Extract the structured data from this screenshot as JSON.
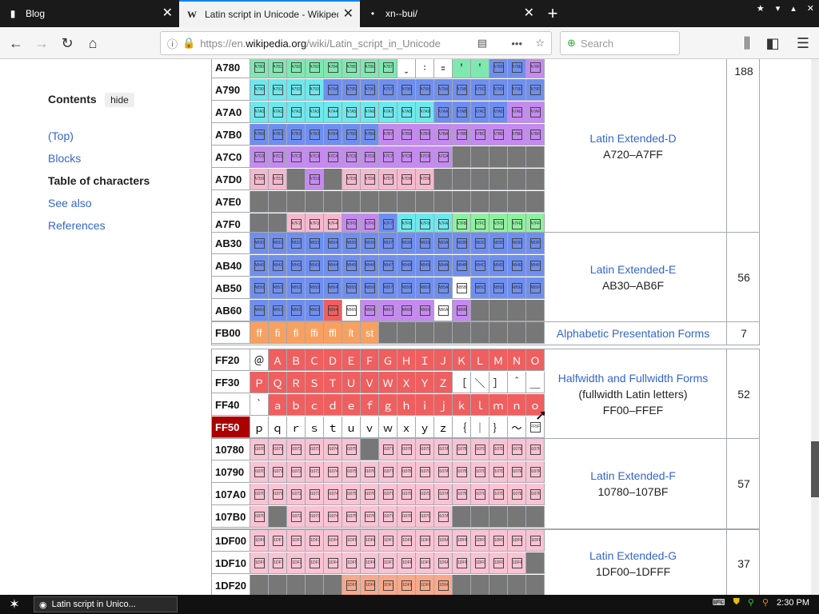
{
  "tabs": [
    {
      "icon": "terminal-icon",
      "label": "Blog",
      "close": "✕"
    },
    {
      "icon": "wikipedia-icon",
      "label": "Latin script in Unicode - Wikipedia",
      "close": "✕"
    },
    {
      "icon": "dot-icon",
      "label": "xn--bui/",
      "close": "✕"
    }
  ],
  "new_tab": "+",
  "nav": {
    "url_prefix": "https://en.",
    "url_domain": "wikipedia.org",
    "url_path": "/wiki/Latin_script_in_Unicode",
    "search_placeholder": "Search"
  },
  "sidebar": {
    "title": "Contents",
    "hide": "hide",
    "items": [
      "(Top)",
      "Blocks",
      "Table of characters",
      "See also",
      "References"
    ],
    "current": 2
  },
  "colors": {
    "green": "#7fe8b0",
    "blue": "#6f8ff0",
    "purple": "#c58af0",
    "pink": "#f5b8cc",
    "cyan": "#6ee8ec",
    "gray": "#777777",
    "white": "#ffffff",
    "orange": "#f7a060",
    "red": "#ef5f5f",
    "darkred": "#a81818",
    "lightpink": "#f9c3d4",
    "lightgreen": "#90f0a0",
    "salmon": "#f9a88a"
  },
  "groups": [
    {
      "rows": [
        {
          "head": "A780",
          "cells": [
            "b:green:A78",
            "b:green:A78",
            "b:green:A78",
            "b:green:A78",
            "b:green:A78",
            "b:green:A78",
            "b:green:A78",
            "b:green:A78",
            "t:white:ˬ",
            "t:white:꞉",
            "t:white:꞊",
            "t:green:ꞌ",
            "t:green:ꞌ",
            "b:blue:A78",
            "b:blue:A78",
            "b:purple:A78"
          ]
        },
        {
          "head": "A790",
          "cells": [
            "b:cyan:A79",
            "b:cyan:A79",
            "b:cyan:A79",
            "b:cyan:A79",
            "b:blue:A79",
            "b:blue:A79",
            "b:blue:A79",
            "b:blue:A79",
            "b:blue:A79",
            "b:blue:A79",
            "b:blue:A79",
            "b:blue:A79",
            "b:blue:A79",
            "b:blue:A79",
            "b:blue:A79",
            "b:blue:A79"
          ]
        },
        {
          "head": "A7A0",
          "cells": [
            "b:cyan:A7A",
            "b:cyan:A7A",
            "b:cyan:A7A",
            "b:cyan:A7A",
            "b:cyan:A7A",
            "b:cyan:A7A",
            "b:cyan:A7A",
            "b:cyan:A7A",
            "b:cyan:A7A",
            "b:cyan:A7A",
            "b:blue:A7A",
            "b:blue:A7A",
            "b:blue:A7A",
            "b:blue:A7A",
            "b:purple:A7A",
            "b:purple:A7A"
          ]
        },
        {
          "head": "A7B0",
          "cells": [
            "b:blue:A7B",
            "b:blue:A7B",
            "b:blue:A7B",
            "b:blue:A7B",
            "b:blue:A7B",
            "b:blue:A7B",
            "b:blue:A7B",
            "b:purple:A7B",
            "b:purple:A7B",
            "b:purple:A7B",
            "b:purple:A7B",
            "b:purple:A7B",
            "b:purple:A7B",
            "b:purple:A7B",
            "b:purple:A7B",
            "b:purple:A7B"
          ]
        },
        {
          "head": "A7C0",
          "cells": [
            "b:purple:A7C",
            "b:purple:A7C",
            "b:purple:A7C",
            "b:purple:A7C",
            "b:purple:A7C",
            "b:purple:A7C",
            "b:purple:A7C",
            "b:purple:A7C",
            "b:purple:A7C",
            "b:purple:A7C",
            "b:purple:A7C",
            "g",
            "g",
            "g",
            "g",
            "g"
          ]
        },
        {
          "head": "A7D0",
          "cells": [
            "b:pink:A7D",
            "b:pink:A7D",
            "g",
            "b:purple:A7D",
            "g",
            "b:pink:A7D",
            "b:pink:A7D",
            "b:pink:A7D",
            "b:pink:A7D",
            "b:pink:A7D",
            "g",
            "g",
            "g",
            "g",
            "g",
            "g"
          ]
        },
        {
          "head": "A7E0",
          "cells": [
            "g",
            "g",
            "g",
            "g",
            "g",
            "g",
            "g",
            "g",
            "g",
            "g",
            "g",
            "g",
            "g",
            "g",
            "g",
            "g"
          ]
        },
        {
          "head": "A7F0",
          "cells": [
            "g",
            "g",
            "b:pink:A7F",
            "b:pink:A7F",
            "b:pink:A7F",
            "b:purple:A7F",
            "b:purple:A7F",
            "b:blue:A7F",
            "b:cyan:A7F",
            "b:cyan:A7F",
            "b:cyan:A7F",
            "b:lightgreen:A7F",
            "b:lightgreen:A7F",
            "b:lightgreen:A7F",
            "b:lightgreen:A7F",
            "b:lightgreen:A7F"
          ]
        }
      ],
      "name": "Latin Extended-D",
      "range": "A720–A7FF",
      "count": "188"
    },
    {
      "rows": [
        {
          "head": "AB30",
          "cells": [
            "b:blue:AB3",
            "b:blue:AB3",
            "b:blue:AB3",
            "b:blue:AB3",
            "b:blue:AB3",
            "b:blue:AB3",
            "b:blue:AB3",
            "b:blue:AB3",
            "b:blue:AB3",
            "b:blue:AB3",
            "b:blue:AB3",
            "b:blue:AB3",
            "b:blue:AB3",
            "b:blue:AB3",
            "b:blue:AB3",
            "b:blue:AB3"
          ]
        },
        {
          "head": "AB40",
          "cells": [
            "b:blue:AB4",
            "b:blue:AB4",
            "b:blue:AB4",
            "b:blue:AB4",
            "b:blue:AB4",
            "b:blue:AB4",
            "b:blue:AB4",
            "b:blue:AB4",
            "b:blue:AB4",
            "b:blue:AB4",
            "b:blue:AB4",
            "b:blue:AB4",
            "b:blue:AB4",
            "b:blue:AB4",
            "b:blue:AB4",
            "b:blue:AB4"
          ]
        },
        {
          "head": "AB50",
          "cells": [
            "b:blue:AB5",
            "b:blue:AB5",
            "b:blue:AB5",
            "b:blue:AB5",
            "b:blue:AB5",
            "b:blue:AB5",
            "b:blue:AB5",
            "b:blue:AB5",
            "b:blue:AB5",
            "b:blue:AB5",
            "b:blue:AB5",
            "b:white:AB5",
            "b:blue:AB5",
            "b:blue:AB5",
            "b:blue:AB5",
            "b:blue:AB5"
          ]
        },
        {
          "head": "AB60",
          "cells": [
            "b:blue:AB6",
            "b:blue:AB6",
            "b:blue:AB6",
            "b:blue:AB6",
            "b:red:AB6",
            "b:white:AB6",
            "b:purple:AB6",
            "b:purple:AB6",
            "b:purple:AB6",
            "b:purple:AB6",
            "b:white:AB6",
            "b:purple:AB6",
            "g",
            "g",
            "g",
            "g"
          ]
        }
      ],
      "name": "Latin Extended-E",
      "range": "AB30–AB6F",
      "count": "56"
    },
    {
      "rows": [
        {
          "head": "FB00",
          "cells": [
            "t:orange:ff",
            "t:orange:fi",
            "t:orange:fl",
            "t:orange:ffi",
            "t:orange:ffl",
            "t:orange:ſt",
            "t:orange:st",
            "g",
            "g",
            "g",
            "g",
            "g",
            "g",
            "g",
            "g",
            "g"
          ]
        }
      ],
      "name": "Alphabetic Presentation Forms",
      "range": "",
      "count": "7"
    },
    {
      "rows": [
        {
          "head": "FF20",
          "cells": [
            "t:white:＠",
            "t:red:Ａ",
            "t:red:Ｂ",
            "t:red:Ｃ",
            "t:red:Ｄ",
            "t:red:Ｅ",
            "t:red:Ｆ",
            "t:red:Ｇ",
            "t:red:Ｈ",
            "t:red:Ｉ",
            "t:red:Ｊ",
            "t:red:Ｋ",
            "t:red:Ｌ",
            "t:red:Ｍ",
            "t:red:Ｎ",
            "t:red:Ｏ"
          ]
        },
        {
          "head": "FF30",
          "cells": [
            "t:red:Ｐ",
            "t:red:Ｑ",
            "t:red:Ｒ",
            "t:red:Ｓ",
            "t:red:Ｔ",
            "t:red:Ｕ",
            "t:red:Ｖ",
            "t:red:Ｗ",
            "t:red:Ｘ",
            "t:red:Ｙ",
            "t:red:Ｚ",
            "t:white:［",
            "t:white:＼",
            "t:white:］",
            "t:white:＾",
            "t:white:＿"
          ]
        },
        {
          "head": "FF40",
          "cells": [
            "t:white:｀",
            "t:red:ａ",
            "t:red:ｂ",
            "t:red:ｃ",
            "t:red:ｄ",
            "t:red:ｅ",
            "t:red:ｆ",
            "t:red:ｇ",
            "t:red:ｈ",
            "t:red:ｉ",
            "t:red:ｊ",
            "t:red:ｋ",
            "t:red:ｌ",
            "t:red:ｍ",
            "t:red:ｎ",
            "t:red:ｏ"
          ]
        },
        {
          "head": "FF50",
          "hl": true,
          "cells": [
            "t:darkred:ｐ",
            "t:darkred:ｑ",
            "t:darkred:ｒ",
            "t:darkred:ｓ",
            "t:darkred:ｔ",
            "t:darkred:ｕ",
            "t:darkred:ｖ",
            "t:darkred:ｗ",
            "t:darkred:ｘ",
            "t:darkred:ｙ",
            "t:darkred:ｚ",
            "t:darkred:｛",
            "t:darkred:｜",
            "t:darkred:｝",
            "t:darkred:～",
            "b:white:FF5"
          ]
        }
      ],
      "name": "Halfwidth and Fullwidth Forms",
      "sub": "(fullwidth Latin letters)",
      "range": "FF00–FFEF",
      "count": "52"
    },
    {
      "rows": [
        {
          "head": "10780",
          "cells": [
            "b:lightpink:0107",
            "b:lightpink:0107",
            "b:lightpink:0107",
            "b:lightpink:0107",
            "b:lightpink:0107",
            "b:lightpink:0107",
            "g",
            "b:lightpink:0107",
            "b:lightpink:0107",
            "b:lightpink:0107",
            "b:lightpink:0107",
            "b:lightpink:0107",
            "b:lightpink:0107",
            "b:lightpink:0107",
            "b:lightpink:0107",
            "b:lightpink:0107"
          ]
        },
        {
          "head": "10790",
          "cells": [
            "b:lightpink:0107",
            "b:lightpink:0107",
            "b:lightpink:0107",
            "b:lightpink:0107",
            "b:lightpink:0107",
            "b:lightpink:0107",
            "b:lightpink:0107",
            "b:lightpink:0107",
            "b:lightpink:0107",
            "b:lightpink:0107",
            "b:lightpink:0107",
            "b:lightpink:0107",
            "b:lightpink:0107",
            "b:lightpink:0107",
            "b:lightpink:0107",
            "b:lightpink:0107"
          ]
        },
        {
          "head": "107A0",
          "cells": [
            "b:lightpink:0107",
            "b:lightpink:0107",
            "b:lightpink:0107",
            "b:lightpink:0107",
            "b:lightpink:0107",
            "b:lightpink:0107",
            "b:lightpink:0107",
            "b:lightpink:0107",
            "b:lightpink:0107",
            "b:lightpink:0107",
            "b:lightpink:0107",
            "b:lightpink:0107",
            "b:lightpink:0107",
            "b:lightpink:0107",
            "b:lightpink:0107",
            "b:lightpink:0107"
          ]
        },
        {
          "head": "107B0",
          "cells": [
            "b:lightpink:0107",
            "g",
            "b:lightpink:0107",
            "b:lightpink:0107",
            "b:lightpink:0107",
            "b:lightpink:0107",
            "b:lightpink:0107",
            "b:lightpink:0107",
            "b:lightpink:0107",
            "b:lightpink:0107",
            "b:lightpink:0107",
            "g",
            "g",
            "g",
            "g",
            "g"
          ]
        }
      ],
      "name": "Latin Extended-F",
      "range": "10780–107BF",
      "count": "57"
    },
    {
      "rows": [
        {
          "head": "1DF00",
          "cells": [
            "b:lightpink:01DF",
            "b:lightpink:01DF",
            "b:lightpink:01DF",
            "b:lightpink:01DF",
            "b:lightpink:01DF",
            "b:lightpink:01DF",
            "b:lightpink:01DF",
            "b:lightpink:01DF",
            "b:lightpink:01DF",
            "b:lightpink:01DF",
            "b:lightpink:01DF",
            "b:lightpink:01DF",
            "b:lightpink:01DF",
            "b:lightpink:01DF",
            "b:lightpink:01DF",
            "b:lightpink:01DF"
          ]
        },
        {
          "head": "1DF10",
          "cells": [
            "b:lightpink:01DF",
            "b:lightpink:01DF",
            "b:lightpink:01DF",
            "b:lightpink:01DF",
            "b:lightpink:01DF",
            "b:lightpink:01DF",
            "b:lightpink:01DF",
            "b:lightpink:01DF",
            "b:lightpink:01DF",
            "b:lightpink:01DF",
            "b:lightpink:01DF",
            "b:lightpink:01DF",
            "b:lightpink:01DF",
            "b:lightpink:01DF",
            "b:lightpink:01DF",
            "g"
          ]
        },
        {
          "head": "1DF20",
          "cells": [
            "g",
            "g",
            "g",
            "g",
            "g",
            "b:salmon:01DF",
            "b:salmon:01DF",
            "b:salmon:01DF",
            "b:salmon:01DF",
            "b:salmon:01DF",
            "b:salmon:01DF",
            "g",
            "g",
            "g",
            "g",
            "g"
          ]
        }
      ],
      "name": "Latin Extended-G",
      "range": "1DF00–1DFFF",
      "count": "37"
    }
  ],
  "taskbar": {
    "task": "Latin script in Unico...",
    "clock": "2:30 PM"
  }
}
